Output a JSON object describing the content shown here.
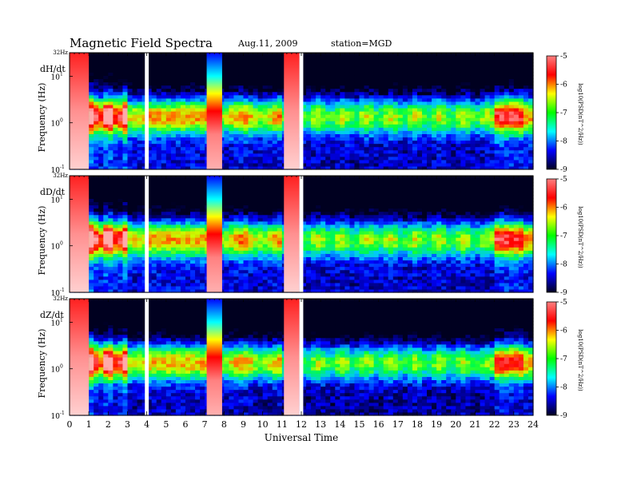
{
  "header": {
    "title": "Magnetic  Field  Spectra",
    "date": "Aug.11, 2009",
    "station": "station=MGD"
  },
  "chart_data": {
    "type": "heatmap",
    "xlabel": "Universal Time",
    "xlim": [
      0,
      24
    ],
    "x_ticks": [
      "0",
      "1",
      "2",
      "3",
      "4",
      "5",
      "6",
      "7",
      "8",
      "9",
      "10",
      "11",
      "12",
      "13",
      "14",
      "15",
      "16",
      "17",
      "18",
      "19",
      "20",
      "21",
      "22",
      "23",
      "24"
    ],
    "ylabel": "Frequency  (Hz)",
    "y_scale": "log",
    "ylim": [
      0.1,
      32
    ],
    "y_top_label": "32Hz",
    "y_tick_labels": [
      {
        "value": 10,
        "base": "10",
        "exp": "1"
      },
      {
        "value": 1,
        "base": "10",
        "exp": "0"
      },
      {
        "value": 0.1,
        "base": "10",
        "exp": "-1"
      }
    ],
    "colorbar": {
      "label": "log10(PSD(nT^2/Hz))",
      "range": [
        -9,
        -5
      ],
      "tick_labels": [
        "-5",
        "-6",
        "-7",
        "-8",
        "-9"
      ],
      "colors": [
        "#ff8080",
        "#ff0000",
        "#ffff00",
        "#00ff00",
        "#00ffff",
        "#0000ff",
        "#000020"
      ]
    },
    "panels": [
      {
        "name": "dH/dt"
      },
      {
        "name": "dD/dt"
      },
      {
        "name": "dZ/dt"
      }
    ],
    "features": [
      {
        "type": "saturated",
        "start": 0,
        "end": 1
      },
      {
        "type": "gap",
        "start": 3.9,
        "end": 4.1
      },
      {
        "type": "saturated",
        "start": 7.1,
        "end": 7.9
      },
      {
        "type": "saturated",
        "start": 11.1,
        "end": 11.9
      },
      {
        "type": "gap",
        "start": 11.9,
        "end": 12.1
      }
    ]
  }
}
